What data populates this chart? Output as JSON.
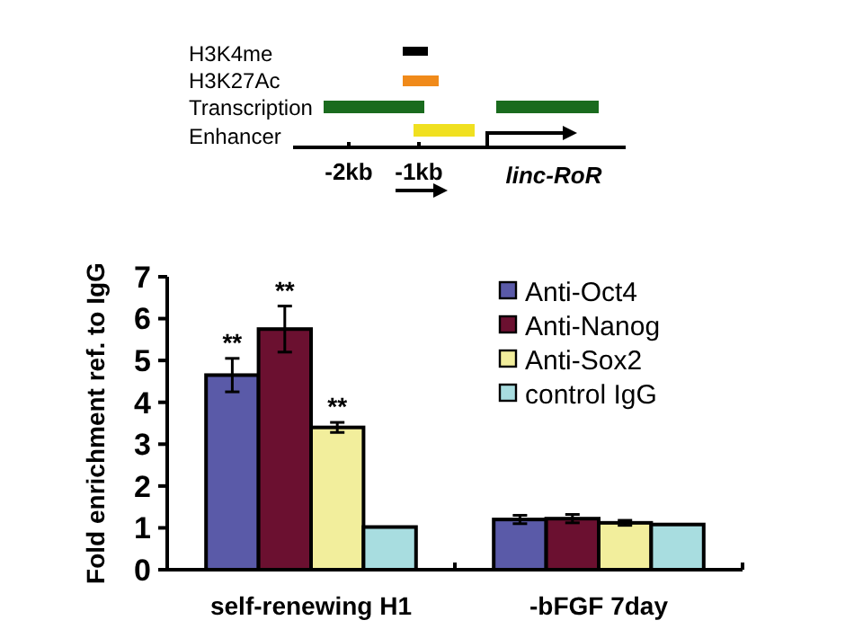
{
  "chart_data": {
    "type": "bar",
    "ylabel": "Fold enrichment ref. to IgG",
    "categories": [
      "self-renewing H1",
      "-bFGF 7day"
    ],
    "series": [
      {
        "name": "Anti-Oct4",
        "color": "#5a5aa8",
        "values": [
          4.65,
          1.2
        ],
        "errors": [
          0.4,
          0.1
        ],
        "value_labels": [
          "**",
          null
        ]
      },
      {
        "name": "Anti-Nanog",
        "color": "#6b1030",
        "values": [
          5.75,
          1.22
        ],
        "errors": [
          0.55,
          0.1
        ],
        "value_labels": [
          "**",
          null
        ]
      },
      {
        "name": "Anti-Sox2",
        "color": "#f2ee9c",
        "values": [
          3.4,
          1.12
        ],
        "errors": [
          0.12,
          0.06
        ],
        "value_labels": [
          "**",
          null
        ]
      },
      {
        "name": "control IgG",
        "color": "#a8dde0",
        "values": [
          1.02,
          1.08
        ]
      }
    ],
    "ylim": [
      0,
      7
    ],
    "yticks": [
      0,
      1,
      2,
      3,
      4,
      5,
      6,
      7
    ],
    "grid": false,
    "legend": "top right",
    "annotations": [
      "H3K4me",
      "H3K27Ac",
      "Transcription",
      "Enhancer",
      "-2kb",
      "-1kb",
      "linc-RoR"
    ]
  }
}
